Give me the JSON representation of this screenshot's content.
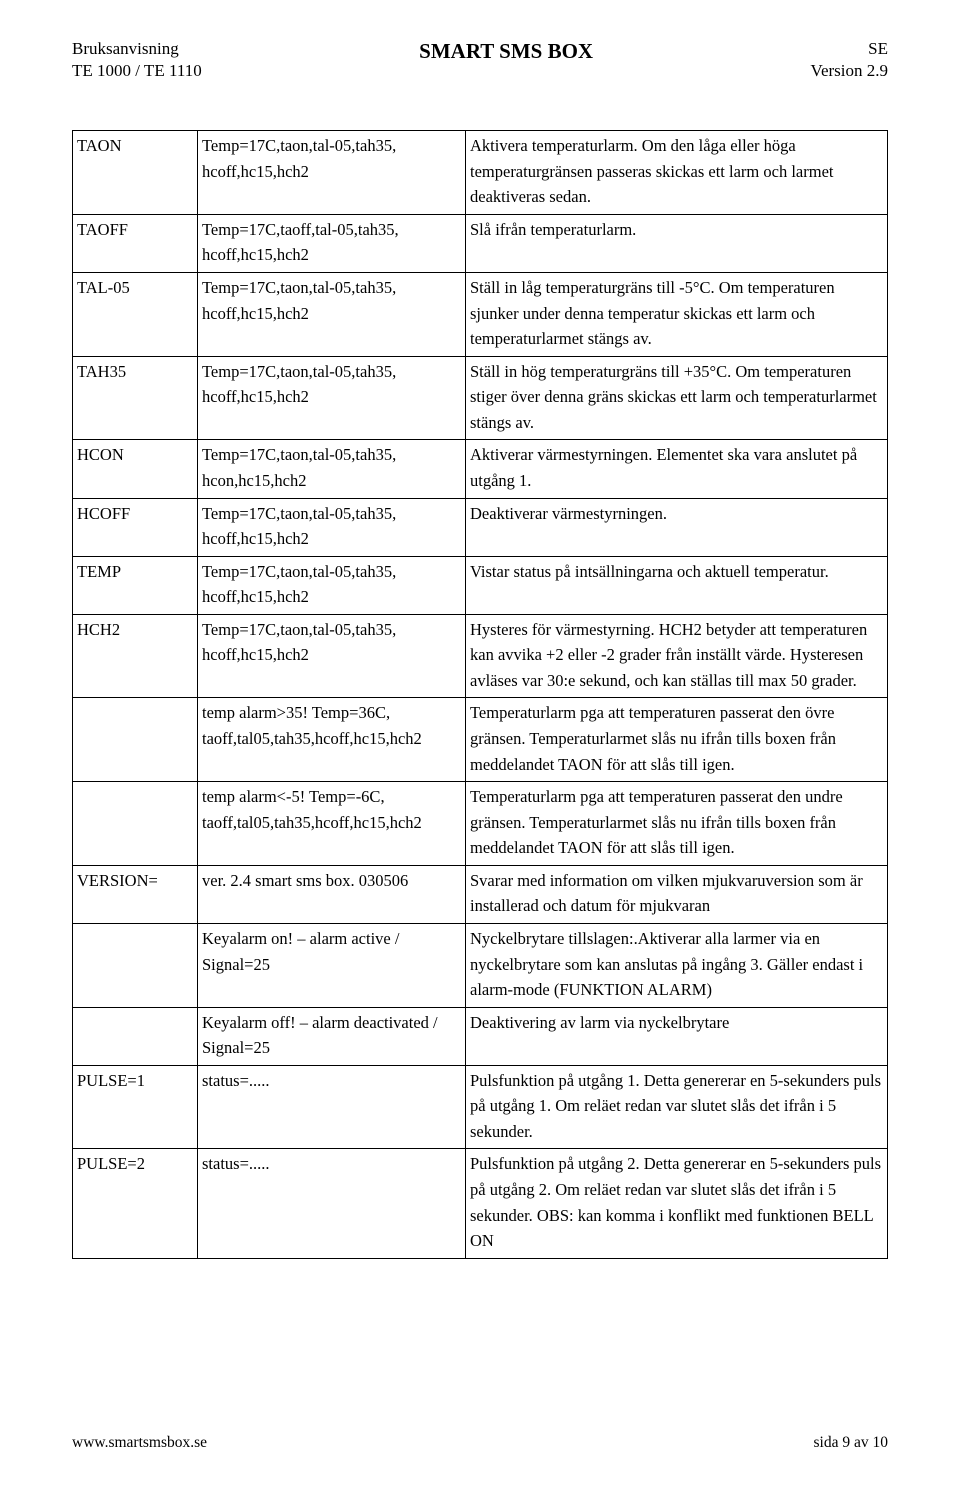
{
  "header": {
    "left1": "Bruksanvisning",
    "left2": "TE 1000 / TE 1110",
    "center": "SMART SMS BOX",
    "right1": "SE",
    "right2": "Version 2.9"
  },
  "table": {
    "rows": [
      {
        "c1": "TAON",
        "c2": "Temp=17C,taon,tal-05,tah35, hcoff,hc15,hch2",
        "c3": "Aktivera temperaturlarm. Om den låga eller höga temperaturgränsen passeras skickas ett larm och larmet deaktiveras sedan."
      },
      {
        "c1": "TAOFF",
        "c2": "Temp=17C,taoff,tal-05,tah35, hcoff,hc15,hch2",
        "c3": "Slå ifrån temperaturlarm."
      },
      {
        "c1": "TAL-05",
        "c2": "Temp=17C,taon,tal-05,tah35, hcoff,hc15,hch2",
        "c3": "Ställ in låg temperaturgräns till -5°C. Om temperaturen sjunker under denna temperatur skickas ett larm och temperaturlarmet stängs av."
      },
      {
        "c1": "TAH35",
        "c2": "Temp=17C,taon,tal-05,tah35, hcoff,hc15,hch2",
        "c3": "Ställ in hög temperaturgräns till +35°C. Om temperaturen stiger över denna gräns skickas ett larm och temperaturlarmet stängs av."
      },
      {
        "c1": "HCON",
        "c2": "Temp=17C,taon,tal-05,tah35, hcon,hc15,hch2",
        "c3": "Aktiverar värmestyrningen. Elementet ska vara anslutet på utgång 1."
      },
      {
        "c1": "HCOFF",
        "c2": "Temp=17C,taon,tal-05,tah35, hcoff,hc15,hch2",
        "c3": "Deaktiverar värmestyrningen."
      },
      {
        "c1": "TEMP",
        "c2": "Temp=17C,taon,tal-05,tah35, hcoff,hc15,hch2",
        "c3": "Vistar status på intsällningarna och aktuell temperatur."
      },
      {
        "c1": "HCH2",
        "c2": "Temp=17C,taon,tal-05,tah35, hcoff,hc15,hch2",
        "c3": "Hysteres för värmestyrning. HCH2 betyder att temperaturen kan avvika +2 eller -2 grader från inställt värde. Hysteresen avläses var 30:e sekund, och kan ställas till max 50 grader."
      },
      {
        "c1": "",
        "c2": "temp alarm>35! Temp=36C, taoff,tal05,tah35,hcoff,hc15,hch2",
        "c3": "Temperaturlarm pga att temperaturen passerat den övre gränsen. Temperaturlarmet slås nu ifrån tills boxen från meddelandet TAON för att slås till igen."
      },
      {
        "c1": "",
        "c2": "temp alarm<-5! Temp=-6C, taoff,tal05,tah35,hcoff,hc15,hch2",
        "c3": "Temperaturlarm pga att temperaturen passerat den undre gränsen. Temperaturlarmet slås nu ifrån tills boxen från meddelandet TAON för att slås till igen."
      },
      {
        "c1": "VERSION=",
        "c2": "ver. 2.4 smart sms box. 030506",
        "c3": "Svarar med information om vilken mjukvaruversion som är installerad och datum för mjukvaran"
      },
      {
        "c1": "",
        "c2": "Keyalarm on! – alarm active / Signal=25",
        "c3": "Nyckelbrytare tillslagen:.Aktiverar alla larmer via en nyckelbrytare som kan anslutas på ingång 3. Gäller endast i alarm-mode (FUNKTION ALARM)"
      },
      {
        "c1": "",
        "c2": "Keyalarm off! – alarm deactivated / Signal=25",
        "c3": "Deaktivering av larm via nyckelbrytare"
      },
      {
        "c1": "PULSE=1",
        "c2": "status=.....",
        "c3": "Pulsfunktion på utgång 1. Detta genererar en 5-sekunders puls på utgång 1. Om reläet redan var slutet slås det ifrån i 5 sekunder."
      },
      {
        "c1": "PULSE=2",
        "c2": "status=.....",
        "c3": "Pulsfunktion på utgång 2. Detta genererar en 5-sekunders puls på utgång 2. Om reläet redan var slutet slås det ifrån i 5 sekunder. OBS: kan komma i konflikt med funktionen BELL ON"
      }
    ]
  },
  "footer": {
    "left": "www.smartsmsbox.se",
    "right": "sida 9 av 10"
  }
}
